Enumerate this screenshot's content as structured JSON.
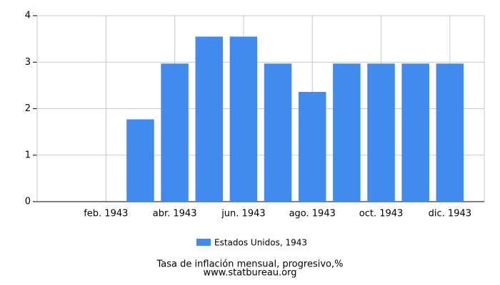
{
  "chart_data": {
    "type": "bar",
    "categories": [
      null,
      "feb. 1943",
      null,
      "abr. 1943",
      null,
      "jun. 1943",
      null,
      "ago. 1943",
      null,
      "oct. 1943",
      null,
      "dic. 1943"
    ],
    "series": [
      {
        "name": "Estados Unidos, 1943",
        "color": "#418bef",
        "values": [
          0,
          0,
          1.77,
          2.97,
          3.55,
          3.55,
          2.97,
          2.36,
          2.97,
          2.97,
          2.97,
          2.97
        ]
      }
    ],
    "ylim": [
      0,
      4
    ],
    "yticks": [
      0,
      1,
      2,
      3,
      4
    ],
    "grid": true,
    "legend": "bottom",
    "footer_title": "Tasa de inflación mensual, progresivo,%",
    "footer_source": "www.statbureau.org"
  }
}
